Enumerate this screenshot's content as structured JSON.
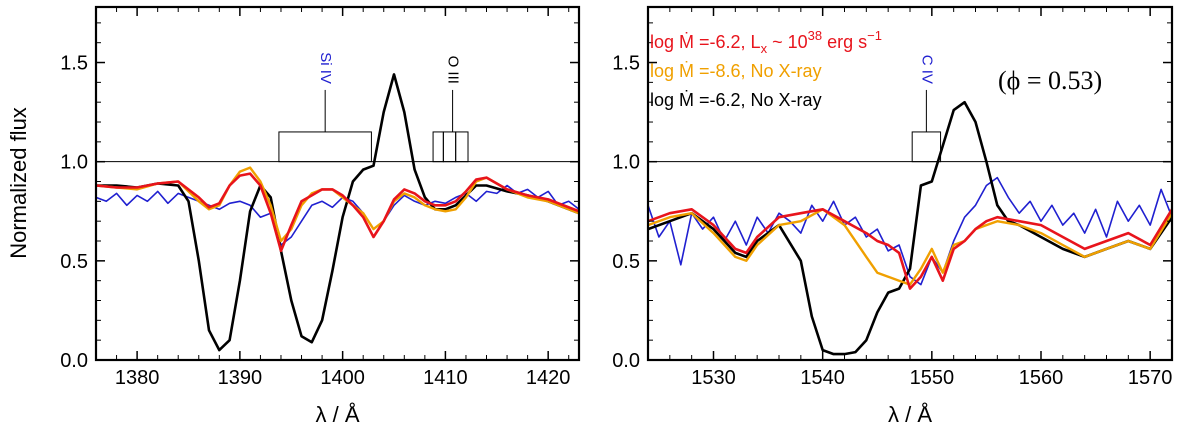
{
  "chart_data": [
    {
      "type": "line",
      "xlabel": "λ / Å",
      "ylabel": "Normalized flux",
      "xlim": [
        1376,
        1423
      ],
      "ylim": [
        0,
        1.78
      ],
      "xticks": [
        1380,
        1390,
        1400,
        1410,
        1420
      ],
      "yticks": [
        0.0,
        0.5,
        1.0,
        1.5
      ],
      "ytick_labels": [
        "0.0",
        "0.5",
        "1.0",
        "1.5"
      ],
      "continuum": 1.0,
      "line_ids": [
        {
          "label": "Si IV",
          "color": "#2020d0",
          "segments": [
            [
              1393.8,
              1402.8
            ]
          ],
          "top": 1.15,
          "bracket_x": 1398.3,
          "text_x": 1398.3
        },
        {
          "label": "O III",
          "color": "#000000",
          "segments": [
            [
              1408.8,
              1409.8
            ],
            [
              1409.8,
              1411.0
            ],
            [
              1411.0,
              1412.2
            ]
          ],
          "top": 1.15,
          "bracket_x": 1410.7,
          "text_x": 1410.7
        }
      ],
      "series": [
        {
          "color": "#2020d0",
          "width": 1.6,
          "x": [
            1376,
            1377,
            1378,
            1379,
            1380,
            1381,
            1382,
            1383,
            1384,
            1385,
            1386,
            1387,
            1388,
            1389,
            1390,
            1391,
            1392,
            1393,
            1394,
            1395,
            1396,
            1397,
            1398,
            1399,
            1400,
            1401,
            1402,
            1403,
            1404,
            1405,
            1406,
            1407,
            1408,
            1409,
            1410,
            1411,
            1412,
            1413,
            1414,
            1415,
            1416,
            1417,
            1418,
            1419,
            1420,
            1421,
            1422,
            1423
          ],
          "y": [
            0.82,
            0.8,
            0.84,
            0.78,
            0.83,
            0.8,
            0.85,
            0.79,
            0.84,
            0.82,
            0.8,
            0.78,
            0.76,
            0.79,
            0.8,
            0.78,
            0.72,
            0.74,
            0.58,
            0.62,
            0.7,
            0.78,
            0.8,
            0.77,
            0.82,
            0.8,
            0.74,
            0.66,
            0.7,
            0.78,
            0.83,
            0.8,
            0.78,
            0.8,
            0.79,
            0.82,
            0.84,
            0.8,
            0.85,
            0.84,
            0.88,
            0.84,
            0.86,
            0.82,
            0.85,
            0.78,
            0.8,
            0.76
          ]
        },
        {
          "color": "#000000",
          "width": 2.6,
          "x": [
            1376,
            1378,
            1380,
            1382,
            1384,
            1385,
            1386,
            1387,
            1388,
            1389,
            1390,
            1391,
            1392,
            1393,
            1394,
            1395,
            1396,
            1397,
            1398,
            1399,
            1400,
            1401,
            1402,
            1403,
            1404,
            1405,
            1406,
            1407,
            1408,
            1409,
            1410,
            1411,
            1412,
            1413,
            1414,
            1416,
            1418,
            1420,
            1423
          ],
          "y": [
            0.88,
            0.88,
            0.87,
            0.89,
            0.88,
            0.8,
            0.5,
            0.15,
            0.05,
            0.1,
            0.4,
            0.75,
            0.88,
            0.82,
            0.55,
            0.3,
            0.12,
            0.09,
            0.2,
            0.45,
            0.72,
            0.9,
            0.96,
            0.98,
            1.25,
            1.44,
            1.25,
            0.96,
            0.82,
            0.76,
            0.76,
            0.78,
            0.83,
            0.88,
            0.88,
            0.85,
            0.83,
            0.8,
            0.74
          ]
        },
        {
          "color": "#f0a000",
          "width": 2.4,
          "x": [
            1376,
            1378,
            1380,
            1382,
            1384,
            1386,
            1387,
            1388,
            1389,
            1390,
            1391,
            1392,
            1393,
            1394,
            1395,
            1396,
            1397,
            1398,
            1399,
            1400,
            1401,
            1402,
            1403,
            1404,
            1405,
            1406,
            1407,
            1408,
            1409,
            1410,
            1411,
            1412,
            1413,
            1414,
            1416,
            1418,
            1420,
            1423
          ],
          "y": [
            0.88,
            0.87,
            0.86,
            0.89,
            0.9,
            0.8,
            0.76,
            0.78,
            0.88,
            0.95,
            0.97,
            0.9,
            0.78,
            0.6,
            0.66,
            0.78,
            0.84,
            0.86,
            0.86,
            0.82,
            0.78,
            0.74,
            0.66,
            0.7,
            0.8,
            0.84,
            0.82,
            0.78,
            0.76,
            0.75,
            0.76,
            0.82,
            0.9,
            0.92,
            0.86,
            0.82,
            0.8,
            0.74
          ]
        },
        {
          "color": "#e8141c",
          "width": 2.6,
          "x": [
            1376,
            1378,
            1380,
            1382,
            1384,
            1386,
            1387,
            1388,
            1389,
            1390,
            1391,
            1392,
            1393,
            1394,
            1395,
            1396,
            1397,
            1398,
            1399,
            1400,
            1401,
            1402,
            1403,
            1404,
            1405,
            1406,
            1407,
            1408,
            1409,
            1410,
            1411,
            1412,
            1413,
            1414,
            1416,
            1418,
            1420,
            1423
          ],
          "y": [
            0.88,
            0.87,
            0.87,
            0.89,
            0.9,
            0.82,
            0.77,
            0.79,
            0.88,
            0.93,
            0.94,
            0.88,
            0.74,
            0.55,
            0.68,
            0.8,
            0.83,
            0.86,
            0.86,
            0.83,
            0.78,
            0.72,
            0.62,
            0.7,
            0.81,
            0.86,
            0.84,
            0.8,
            0.78,
            0.78,
            0.8,
            0.85,
            0.91,
            0.92,
            0.86,
            0.83,
            0.81,
            0.75
          ]
        }
      ]
    },
    {
      "type": "line",
      "xlabel": "λ / Å",
      "ylabel": "",
      "xlim": [
        1524,
        1572
      ],
      "ylim": [
        0,
        1.78
      ],
      "xticks": [
        1530,
        1540,
        1550,
        1560,
        1570
      ],
      "yticks": [
        0.0,
        0.5,
        1.0,
        1.5
      ],
      "ytick_labels": [
        "0.0",
        "0.5",
        "1.0",
        "1.5"
      ],
      "continuum": 1.0,
      "phase_label": "(ϕ = 0.53)",
      "legend": [
        {
          "text": "log Ṁ =-6.2,  L",
          "sub": "x",
          "tail": " ~ 10",
          "sup": "38",
          "unit": " erg s",
          "unitsup": "−1",
          "color": "#e8141c"
        },
        {
          "text": "log Ṁ =-8.6, No X-ray",
          "color": "#f0a000"
        },
        {
          "text": "log Ṁ =-6.2, No X-ray",
          "color": "#000000"
        }
      ],
      "line_ids": [
        {
          "label": "C IV",
          "color": "#2020d0",
          "segments": [
            [
              1548.2,
              1550.8
            ]
          ],
          "top": 1.15,
          "bracket_x": 1549.5,
          "text_x": 1549.5
        }
      ],
      "series": [
        {
          "color": "#2020d0",
          "width": 1.6,
          "x": [
            1524,
            1525,
            1526,
            1527,
            1528,
            1529,
            1530,
            1531,
            1532,
            1533,
            1534,
            1535,
            1536,
            1537,
            1538,
            1539,
            1540,
            1541,
            1542,
            1543,
            1544,
            1545,
            1546,
            1547,
            1548,
            1549,
            1550,
            1551,
            1552,
            1553,
            1554,
            1555,
            1556,
            1557,
            1558,
            1559,
            1560,
            1561,
            1562,
            1563,
            1564,
            1565,
            1566,
            1567,
            1568,
            1569,
            1570,
            1571,
            1572
          ],
          "y": [
            0.78,
            0.62,
            0.7,
            0.48,
            0.74,
            0.66,
            0.72,
            0.6,
            0.7,
            0.58,
            0.72,
            0.64,
            0.74,
            0.7,
            0.64,
            0.78,
            0.7,
            0.8,
            0.68,
            0.72,
            0.62,
            0.66,
            0.55,
            0.58,
            0.42,
            0.38,
            0.52,
            0.44,
            0.6,
            0.72,
            0.78,
            0.88,
            0.92,
            0.82,
            0.74,
            0.8,
            0.7,
            0.78,
            0.68,
            0.74,
            0.64,
            0.76,
            0.62,
            0.8,
            0.7,
            0.78,
            0.68,
            0.86,
            0.72
          ]
        },
        {
          "color": "#000000",
          "width": 2.6,
          "x": [
            1524,
            1526,
            1528,
            1530,
            1532,
            1533,
            1534,
            1536,
            1538,
            1539,
            1540,
            1541,
            1542,
            1543,
            1544,
            1545,
            1546,
            1547,
            1548,
            1549,
            1550,
            1551,
            1552,
            1553,
            1554,
            1555,
            1556,
            1557,
            1558,
            1560,
            1562,
            1564,
            1566,
            1568,
            1570,
            1572
          ],
          "y": [
            0.66,
            0.7,
            0.74,
            0.66,
            0.54,
            0.52,
            0.6,
            0.68,
            0.5,
            0.22,
            0.05,
            0.03,
            0.03,
            0.04,
            0.1,
            0.24,
            0.34,
            0.36,
            0.46,
            0.88,
            0.9,
            1.08,
            1.26,
            1.3,
            1.2,
            1.0,
            0.78,
            0.7,
            0.68,
            0.62,
            0.56,
            0.52,
            0.56,
            0.6,
            0.56,
            0.72
          ]
        },
        {
          "color": "#f0a000",
          "width": 2.4,
          "x": [
            1524,
            1526,
            1528,
            1530,
            1532,
            1533,
            1534,
            1536,
            1538,
            1540,
            1542,
            1544,
            1545,
            1546,
            1547,
            1548,
            1549,
            1550,
            1551,
            1552,
            1553,
            1554,
            1555,
            1556,
            1558,
            1560,
            1562,
            1564,
            1566,
            1568,
            1570,
            1572
          ],
          "y": [
            0.68,
            0.72,
            0.74,
            0.64,
            0.52,
            0.5,
            0.58,
            0.68,
            0.7,
            0.76,
            0.68,
            0.52,
            0.44,
            0.42,
            0.4,
            0.38,
            0.46,
            0.56,
            0.44,
            0.58,
            0.6,
            0.66,
            0.68,
            0.7,
            0.68,
            0.64,
            0.58,
            0.52,
            0.56,
            0.6,
            0.56,
            0.74
          ]
        },
        {
          "color": "#e8141c",
          "width": 2.6,
          "x": [
            1524,
            1526,
            1528,
            1530,
            1532,
            1533,
            1534,
            1536,
            1538,
            1540,
            1542,
            1544,
            1545,
            1546,
            1547,
            1548,
            1549,
            1550,
            1551,
            1552,
            1553,
            1554,
            1555,
            1556,
            1558,
            1560,
            1562,
            1564,
            1566,
            1568,
            1570,
            1572
          ],
          "y": [
            0.7,
            0.74,
            0.76,
            0.68,
            0.56,
            0.54,
            0.62,
            0.72,
            0.74,
            0.76,
            0.7,
            0.64,
            0.6,
            0.58,
            0.54,
            0.36,
            0.42,
            0.52,
            0.4,
            0.56,
            0.6,
            0.66,
            0.7,
            0.72,
            0.7,
            0.68,
            0.62,
            0.56,
            0.6,
            0.64,
            0.58,
            0.76
          ]
        }
      ]
    }
  ]
}
